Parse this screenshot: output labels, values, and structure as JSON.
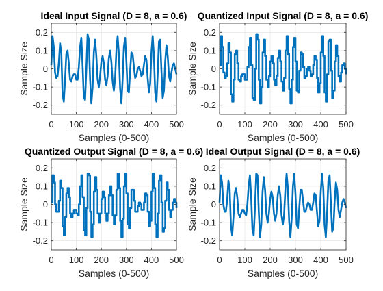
{
  "chart_data": [
    {
      "type": "line",
      "title": "Ideal Input Signal (D = 8, a = 0.6)",
      "xlabel": "Samples (0-500)",
      "ylabel": "Sample Size",
      "xlim": [
        0,
        500
      ],
      "ylim": [
        -0.25,
        0.25
      ],
      "xticks": [
        "0",
        "100",
        "200",
        "300",
        "400",
        "500"
      ],
      "yticks": [
        "-0.2",
        "-0.1",
        "0",
        "0.1",
        "0.2"
      ],
      "grid": true,
      "quantized": false,
      "series": [
        {
          "color": "#0072BD",
          "sample_step": 5,
          "values": [
            0.02,
            0.18,
            0.12,
            -0.02,
            -0.05,
            -0.04,
            0.03,
            0.14,
            0.09,
            -0.14,
            -0.18,
            -0.06,
            0.08,
            0.1,
            0.03,
            -0.06,
            -0.07,
            -0.04,
            -0.03,
            -0.03,
            -0.06,
            -0.06,
            0.01,
            0.12,
            0.17,
            0.02,
            -0.16,
            -0.17,
            0.0,
            0.19,
            0.16,
            -0.06,
            -0.19,
            -0.1,
            0.09,
            0.16,
            0.07,
            -0.06,
            -0.1,
            -0.04,
            0.04,
            0.07,
            0.03,
            -0.06,
            -0.09,
            -0.04,
            0.06,
            0.1,
            0.04,
            -0.07,
            -0.12,
            -0.05,
            0.1,
            0.18,
            0.08,
            -0.11,
            -0.19,
            -0.06,
            0.12,
            0.17,
            0.04,
            -0.12,
            -0.13,
            -0.01,
            0.09,
            0.08,
            0.01,
            -0.05,
            -0.04,
            0.0,
            0.01,
            -0.01,
            -0.04,
            -0.03,
            0.02,
            0.07,
            0.05,
            -0.05,
            -0.13,
            -0.08,
            0.09,
            0.18,
            0.07,
            -0.13,
            -0.18,
            -0.03,
            0.15,
            0.16,
            -0.01,
            -0.16,
            -0.12,
            0.04,
            0.13,
            0.07,
            -0.04,
            -0.07,
            -0.02,
            0.02,
            0.03,
            0.0,
            -0.03
          ]
        }
      ]
    },
    {
      "type": "line",
      "title": "Quantized Input Signal (D = 8, a = 0.6)",
      "xlabel": "Samples (0-500)",
      "ylabel": "Sample Size",
      "xlim": [
        0,
        500
      ],
      "ylim": [
        -0.25,
        0.25
      ],
      "xticks": [
        "0",
        "100",
        "200",
        "300",
        "400",
        "500"
      ],
      "yticks": [
        "-0.2",
        "-0.1",
        "0",
        "0.1",
        "0.2"
      ],
      "grid": true,
      "quantized": true,
      "series": [
        {
          "color": "#0072BD",
          "sample_step": 5,
          "values": [
            0.02,
            0.18,
            0.12,
            -0.02,
            -0.05,
            -0.04,
            0.03,
            0.14,
            0.09,
            -0.14,
            -0.18,
            -0.06,
            0.08,
            0.1,
            0.03,
            -0.06,
            -0.07,
            -0.04,
            -0.03,
            -0.03,
            -0.06,
            -0.06,
            0.01,
            0.12,
            0.17,
            0.02,
            -0.16,
            -0.17,
            0.0,
            0.19,
            0.16,
            -0.06,
            -0.19,
            -0.1,
            0.09,
            0.16,
            0.07,
            -0.06,
            -0.1,
            -0.04,
            0.04,
            0.07,
            0.03,
            -0.06,
            -0.09,
            -0.04,
            0.06,
            0.1,
            0.04,
            -0.07,
            -0.12,
            -0.05,
            0.1,
            0.18,
            0.08,
            -0.11,
            -0.19,
            -0.06,
            0.12,
            0.17,
            0.04,
            -0.12,
            -0.13,
            -0.01,
            0.09,
            0.08,
            0.01,
            -0.05,
            -0.04,
            0.0,
            0.01,
            -0.01,
            -0.04,
            -0.03,
            0.02,
            0.07,
            0.05,
            -0.05,
            -0.13,
            -0.08,
            0.09,
            0.18,
            0.07,
            -0.13,
            -0.18,
            -0.03,
            0.15,
            0.16,
            -0.01,
            -0.16,
            -0.12,
            0.04,
            0.13,
            0.07,
            -0.04,
            -0.07,
            -0.02,
            0.02,
            0.03,
            0.0,
            -0.03
          ]
        }
      ]
    },
    {
      "type": "line",
      "title": "Quantized Output Signal (D = 8, a = 0.6)",
      "xlabel": "Samples (0-500)",
      "ylabel": "Sample Size",
      "xlim": [
        0,
        500
      ],
      "ylim": [
        -0.25,
        0.25
      ],
      "xticks": [
        "0",
        "100",
        "200",
        "300",
        "400",
        "500"
      ],
      "yticks": [
        "-0.2",
        "-0.1",
        "0",
        "0.1",
        "0.2"
      ],
      "grid": true,
      "quantized": true,
      "series": [
        {
          "color": "#0072BD",
          "sample_step": 5,
          "values": [
            0.01,
            0.16,
            0.12,
            0.0,
            -0.04,
            -0.04,
            0.02,
            0.13,
            0.09,
            -0.12,
            -0.17,
            -0.07,
            0.06,
            0.09,
            0.04,
            -0.05,
            -0.07,
            -0.05,
            -0.03,
            -0.03,
            -0.05,
            -0.06,
            0.0,
            0.1,
            0.16,
            0.04,
            -0.14,
            -0.17,
            -0.02,
            0.17,
            0.16,
            -0.04,
            -0.18,
            -0.11,
            0.07,
            0.15,
            0.08,
            -0.05,
            -0.1,
            -0.05,
            0.03,
            0.07,
            0.04,
            -0.05,
            -0.09,
            -0.05,
            0.05,
            0.1,
            0.05,
            -0.06,
            -0.11,
            -0.06,
            0.08,
            0.17,
            0.09,
            -0.09,
            -0.18,
            -0.08,
            0.1,
            0.17,
            0.06,
            -0.11,
            -0.13,
            -0.02,
            0.08,
            0.08,
            0.02,
            -0.04,
            -0.04,
            -0.01,
            0.01,
            0.0,
            -0.03,
            -0.03,
            0.01,
            0.06,
            0.05,
            -0.04,
            -0.12,
            -0.09,
            0.07,
            0.17,
            0.09,
            -0.11,
            -0.18,
            -0.05,
            0.13,
            0.16,
            0.01,
            -0.15,
            -0.13,
            0.02,
            0.12,
            0.08,
            -0.03,
            -0.07,
            -0.03,
            0.01,
            0.03,
            0.01,
            -0.02
          ]
        }
      ]
    },
    {
      "type": "line",
      "title": "Ideal Output Signal (D = 8, a = 0.6)",
      "xlabel": "Samples (0-500)",
      "ylabel": "Sample Size",
      "xlim": [
        0,
        500
      ],
      "ylim": [
        -0.25,
        0.25
      ],
      "xticks": [
        "0",
        "100",
        "200",
        "300",
        "400",
        "500"
      ],
      "yticks": [
        "-0.2",
        "-0.1",
        "0",
        "0.1",
        "0.2"
      ],
      "grid": true,
      "quantized": false,
      "series": [
        {
          "color": "#0072BD",
          "sample_step": 5,
          "values": [
            0.01,
            0.16,
            0.12,
            0.0,
            -0.04,
            -0.04,
            0.02,
            0.13,
            0.09,
            -0.12,
            -0.17,
            -0.07,
            0.06,
            0.09,
            0.04,
            -0.05,
            -0.07,
            -0.05,
            -0.03,
            -0.03,
            -0.05,
            -0.06,
            0.0,
            0.1,
            0.16,
            0.04,
            -0.14,
            -0.17,
            -0.02,
            0.17,
            0.16,
            -0.04,
            -0.18,
            -0.11,
            0.07,
            0.15,
            0.08,
            -0.05,
            -0.1,
            -0.05,
            0.03,
            0.07,
            0.04,
            -0.05,
            -0.09,
            -0.05,
            0.05,
            0.1,
            0.05,
            -0.06,
            -0.11,
            -0.06,
            0.08,
            0.17,
            0.09,
            -0.09,
            -0.18,
            -0.08,
            0.1,
            0.17,
            0.06,
            -0.11,
            -0.13,
            -0.02,
            0.08,
            0.08,
            0.02,
            -0.04,
            -0.04,
            -0.01,
            0.01,
            0.0,
            -0.03,
            -0.03,
            0.01,
            0.06,
            0.05,
            -0.04,
            -0.12,
            -0.09,
            0.07,
            0.17,
            0.09,
            -0.11,
            -0.18,
            -0.05,
            0.13,
            0.16,
            0.01,
            -0.15,
            -0.13,
            0.02,
            0.12,
            0.08,
            -0.03,
            -0.07,
            -0.03,
            0.01,
            0.03,
            0.01,
            -0.02
          ]
        }
      ]
    }
  ]
}
